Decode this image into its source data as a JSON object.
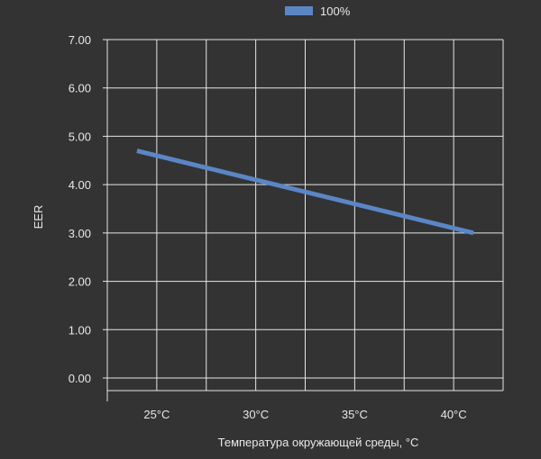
{
  "chart_data": {
    "type": "line",
    "xlabel": "Температура окружающей среды, °C",
    "ylabel": "EER",
    "ylim": [
      0,
      7
    ],
    "y_ticks": [
      "0.00",
      "1.00",
      "2.00",
      "3.00",
      "4.00",
      "5.00",
      "6.00",
      "7.00"
    ],
    "x_ticks": [
      "25°C",
      "30°C",
      "35°C",
      "40°C"
    ],
    "x_tick_values": [
      25,
      30,
      35,
      40
    ],
    "xlim": [
      22.5,
      42.5
    ],
    "grid": true,
    "legend_position": "top",
    "series": [
      {
        "name": "100%",
        "color": "#5b86c5",
        "points": [
          {
            "x": 24,
            "y": 4.7
          },
          {
            "x": 41,
            "y": 3.0
          }
        ]
      }
    ]
  }
}
